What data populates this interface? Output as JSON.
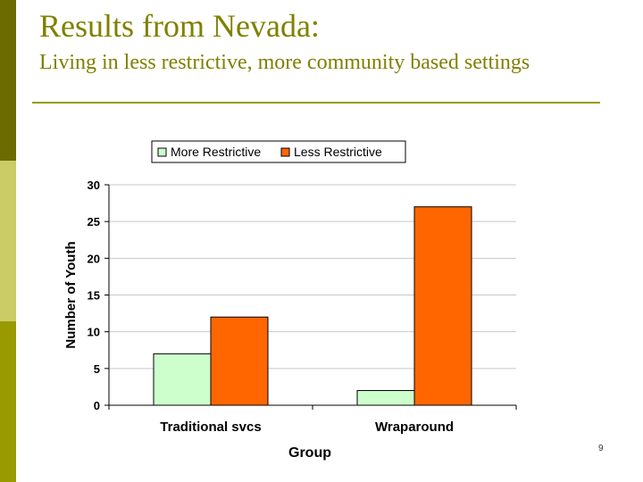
{
  "slide": {
    "title": "Results from Nevada:",
    "subtitle": "Living in less restrictive, more community based settings",
    "page_number": "9"
  },
  "colors": {
    "sidebar_dark": "#6b6b00",
    "sidebar_light": "#cccc66",
    "sidebar_mid": "#999900",
    "title_text": "#808000",
    "series_more_restrictive": "#ccffcc",
    "series_less_restrictive": "#ff6600"
  },
  "chart_data": {
    "type": "bar",
    "title": "",
    "xlabel": "Group",
    "ylabel": "Number of Youth",
    "categories": [
      "Traditional svcs",
      "Wraparound"
    ],
    "series": [
      {
        "name": "More Restrictive",
        "values": [
          7,
          2
        ],
        "color": "#ccffcc"
      },
      {
        "name": "Less Restrictive",
        "values": [
          12,
          27
        ],
        "color": "#ff6600"
      }
    ],
    "ylim": [
      0,
      30
    ],
    "yticks": [
      0,
      5,
      10,
      15,
      20,
      25,
      30
    ],
    "grid": true,
    "legend": "top-center"
  }
}
